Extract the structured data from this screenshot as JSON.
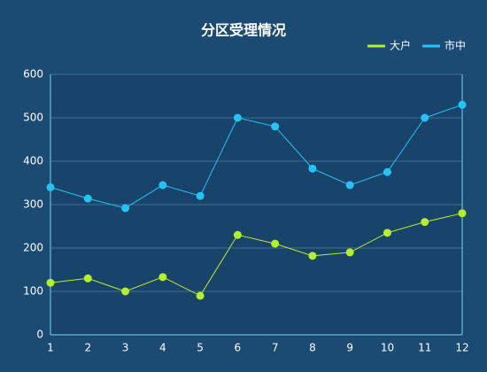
{
  "chart_data": {
    "type": "line",
    "title": "分区受理情况",
    "categories": [
      "1",
      "2",
      "3",
      "4",
      "5",
      "6",
      "7",
      "8",
      "9",
      "10",
      "11",
      "12"
    ],
    "series": [
      {
        "name": "大户",
        "color": "#b4f02a",
        "values": [
          120,
          130,
          100,
          133,
          90,
          230,
          210,
          182,
          190,
          235,
          260,
          280
        ]
      },
      {
        "name": "市中",
        "color": "#22c4f5",
        "values": [
          340,
          314,
          292,
          345,
          320,
          500,
          480,
          383,
          345,
          375,
          500,
          530
        ]
      }
    ],
    "ylim": [
      0,
      600
    ],
    "yticks": [
      0,
      100,
      200,
      300,
      400,
      500,
      600
    ],
    "grid": true,
    "legend": "top-right"
  }
}
